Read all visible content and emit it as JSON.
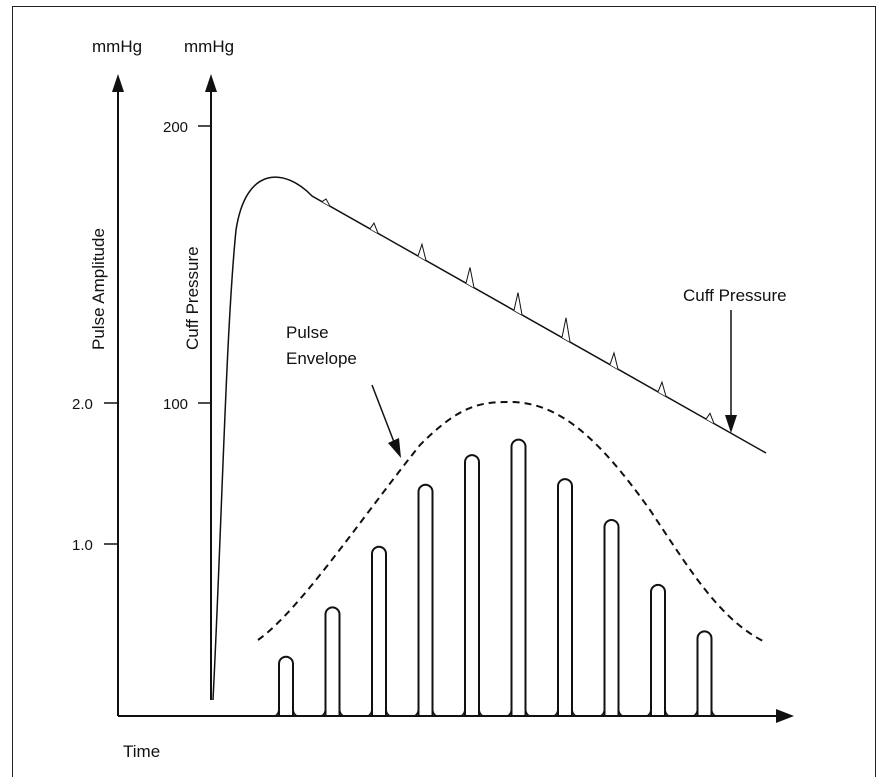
{
  "diagram": {
    "left_axis": {
      "unit": "mmHg",
      "label": "Pulse Amplitude",
      "ticks": [
        "2.0",
        "1.0"
      ]
    },
    "pressure_axis": {
      "unit": "mmHg",
      "label": "Cuff Pressure",
      "ticks": [
        "200",
        "100"
      ]
    },
    "x_axis": {
      "label": "Time"
    },
    "annotations": {
      "cuff_pressure": "Cuff Pressure",
      "pulse_envelope_line1": "Pulse",
      "pulse_envelope_line2": "Envelope"
    },
    "pulse_amplitudes": [
      0.42,
      0.77,
      1.2,
      1.64,
      1.85,
      1.96,
      1.68,
      1.39,
      0.93,
      0.6
    ],
    "pressure_blips": 9,
    "colors": {
      "ink": "#111111",
      "background": "#ffffff"
    }
  }
}
